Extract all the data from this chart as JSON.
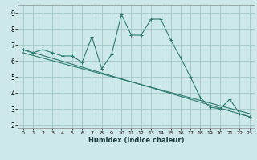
{
  "title": "",
  "xlabel": "Humidex (Indice chaleur)",
  "background_color": "#cde8e8",
  "grid_color": "#a8cccc",
  "line_color": "#2d7a70",
  "x_ticks": [
    0,
    1,
    2,
    3,
    4,
    5,
    6,
    7,
    8,
    9,
    10,
    11,
    12,
    13,
    14,
    15,
    16,
    17,
    18,
    19,
    20,
    21,
    22,
    23
  ],
  "y_ticks": [
    2,
    3,
    4,
    5,
    6,
    7,
    8,
    9
  ],
  "xlim": [
    -0.5,
    23.5
  ],
  "ylim": [
    1.8,
    9.5
  ],
  "series1_x": [
    0,
    1,
    2,
    3,
    4,
    5,
    6,
    7,
    8,
    9,
    10,
    11,
    12,
    13,
    14,
    15,
    16,
    17,
    18,
    19,
    20,
    21,
    22,
    23
  ],
  "series1_y": [
    6.7,
    6.5,
    6.7,
    6.5,
    6.3,
    6.3,
    5.9,
    7.5,
    5.5,
    6.4,
    8.9,
    7.6,
    7.6,
    8.6,
    8.6,
    7.3,
    6.2,
    5.0,
    3.7,
    3.1,
    3.0,
    3.6,
    2.7,
    2.5
  ],
  "series2_x": [
    0,
    23
  ],
  "series2_y": [
    6.7,
    2.5
  ],
  "series3_x": [
    0,
    23
  ],
  "series3_y": [
    6.5,
    2.7
  ]
}
